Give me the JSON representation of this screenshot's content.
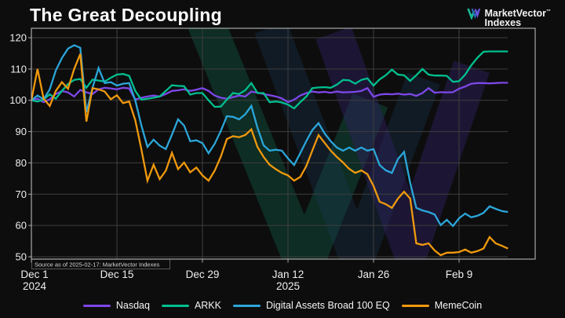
{
  "header": {
    "title": "The Great Decoupling",
    "logo": {
      "line1": "MarketVector",
      "trademark": "™",
      "line2": "Indexes"
    }
  },
  "source_note": "Source as of 2025-02-17: MarketVector Indexes",
  "chart_data": {
    "type": "line",
    "title": "The Great Decoupling",
    "normalized_base": 100,
    "grid": true,
    "legend_position": "bottom",
    "ylim": [
      48,
      122
    ],
    "y_ticks": [
      120,
      110,
      100,
      90,
      80,
      70,
      60,
      50
    ],
    "x_ticks": [
      {
        "label": "Dec 1",
        "sublabel": "2024",
        "day_index": 0
      },
      {
        "label": "Dec 15",
        "sublabel": "",
        "day_index": 14
      },
      {
        "label": "Dec 29",
        "sublabel": "",
        "day_index": 28
      },
      {
        "label": "Jan 12",
        "sublabel": "2025",
        "day_index": 42
      },
      {
        "label": "Jan 26",
        "sublabel": "",
        "day_index": 56
      },
      {
        "label": "Feb 9",
        "sublabel": "",
        "day_index": 70
      }
    ],
    "x": [
      "Dec 1",
      "Dec 2",
      "Dec 3",
      "Dec 4",
      "Dec 5",
      "Dec 6",
      "Dec 7",
      "Dec 8",
      "Dec 9",
      "Dec 10",
      "Dec 11",
      "Dec 12",
      "Dec 13",
      "Dec 14",
      "Dec 15",
      "Dec 16",
      "Dec 17",
      "Dec 18",
      "Dec 19",
      "Dec 20",
      "Dec 21",
      "Dec 22",
      "Dec 23",
      "Dec 24",
      "Dec 25",
      "Dec 26",
      "Dec 27",
      "Dec 28",
      "Dec 29",
      "Dec 30",
      "Dec 31",
      "Jan 1",
      "Jan 2",
      "Jan 3",
      "Jan 4",
      "Jan 5",
      "Jan 6",
      "Jan 7",
      "Jan 8",
      "Jan 9",
      "Jan 10",
      "Jan 11",
      "Jan 12",
      "Jan 13",
      "Jan 14",
      "Jan 15",
      "Jan 16",
      "Jan 17",
      "Jan 18",
      "Jan 19",
      "Jan 20",
      "Jan 21",
      "Jan 22",
      "Jan 23",
      "Jan 24",
      "Jan 25",
      "Jan 26",
      "Jan 27",
      "Jan 28",
      "Jan 29",
      "Jan 30",
      "Jan 31",
      "Feb 1",
      "Feb 2",
      "Feb 3",
      "Feb 4",
      "Feb 5",
      "Feb 6",
      "Feb 7",
      "Feb 8",
      "Feb 9",
      "Feb 10",
      "Feb 11",
      "Feb 12",
      "Feb 13",
      "Feb 14",
      "Feb 15",
      "Feb 16",
      "Feb 17"
    ],
    "series": [
      {
        "name": "Nasdaq",
        "color": "#7d47e8",
        "values": [
          100,
          100.5,
          99.4,
          100.3,
          102,
          103,
          102.5,
          101.2,
          103.3,
          102.5,
          102,
          103.5,
          104,
          103.8,
          103.5,
          104,
          103.8,
          100.2,
          100.8,
          101.2,
          101.5,
          101.2,
          102,
          103,
          103.2,
          103.5,
          103,
          103.4,
          103.9,
          103,
          101.5,
          100.8,
          100.5,
          101,
          101.5,
          101.2,
          102.8,
          102.4,
          102,
          101.6,
          101.2,
          100.6,
          99.4,
          100.2,
          101.5,
          102.3,
          102.8,
          102.5,
          102.7,
          102.4,
          102.8,
          102.5,
          102.6,
          102.7,
          103,
          103.9,
          101.1,
          101.8,
          102,
          101.9,
          102.1,
          101.8,
          102,
          101.4,
          102.3,
          103.9,
          102.4,
          102.6,
          102.5,
          102.6,
          103.7,
          104.4,
          105.3,
          105.5,
          105.5,
          105.4,
          105.5,
          105.6,
          105.6
        ]
      },
      {
        "name": "ARKK",
        "color": "#00bf8f",
        "values": [
          100,
          99.6,
          100.2,
          101.9,
          100.5,
          103,
          105.2,
          106.5,
          106.8,
          104,
          106.6,
          106.3,
          106,
          107.2,
          108.2,
          108.4,
          107.8,
          103,
          100.2,
          100.5,
          100.8,
          101.2,
          103,
          104.8,
          104.6,
          104.5,
          101.8,
          102.3,
          102.3,
          100,
          97.9,
          98,
          100.2,
          102.3,
          102,
          103.2,
          105.5,
          102.3,
          102.3,
          99.4,
          99.6,
          99.3,
          98.6,
          97.4,
          99.4,
          101.2,
          103.9,
          104.1,
          104.2,
          104,
          105,
          106.5,
          106.4,
          105.3,
          106.5,
          107,
          104.7,
          106.7,
          108,
          109.8,
          108.2,
          108,
          106.2,
          108,
          110,
          108.2,
          107.9,
          107.9,
          107.8,
          105.9,
          106.1,
          108.2,
          111.2,
          113.6,
          115.5,
          115.6,
          115.6,
          115.6,
          115.6
        ]
      },
      {
        "name": "Digital Assets Broad 100 EQ",
        "color": "#2ba6d9",
        "values": [
          100,
          101.5,
          100.3,
          103.5,
          109.5,
          113.5,
          116.5,
          117.6,
          116.8,
          96.2,
          104,
          110.3,
          105.5,
          105.8,
          104.7,
          105.3,
          105.5,
          100,
          92,
          85.1,
          87.4,
          85.5,
          84.4,
          89,
          93.9,
          91.9,
          86.9,
          87.2,
          86.3,
          83.1,
          86.1,
          90.2,
          94.9,
          94.7,
          93.9,
          95.5,
          98.2,
          91.2,
          85.6,
          83.9,
          84.2,
          83.9,
          81.4,
          79.3,
          83.1,
          87,
          90.5,
          92.7,
          89.4,
          86.9,
          84.9,
          83.9,
          84.9,
          83.9,
          84.9,
          83.9,
          84.4,
          79.3,
          77.6,
          76.8,
          81.2,
          83.5,
          73.6,
          65.6,
          64.8,
          64.3,
          63.5,
          60.1,
          61.8,
          59.8,
          62.3,
          63.8,
          62.6,
          63.1,
          64,
          66.1,
          65.3,
          64.6,
          64.3
        ]
      },
      {
        "name": "MemeCoin",
        "color": "#ef990d",
        "values": [
          100,
          110,
          100.5,
          98.2,
          103,
          105.8,
          103.7,
          110,
          114.8,
          93.2,
          103.9,
          103.5,
          102.8,
          100.3,
          101.6,
          99.1,
          99.6,
          93.6,
          84.4,
          74.3,
          79.4,
          74.8,
          77.5,
          83.2,
          78,
          80.1,
          77,
          78.5,
          76,
          74.3,
          77.5,
          82,
          87.6,
          88.5,
          88.2,
          88.9,
          90.7,
          85.1,
          81.9,
          79.4,
          78,
          76.8,
          76,
          74.3,
          75.5,
          79,
          84,
          88.9,
          86.4,
          83.9,
          81.9,
          80.1,
          78.1,
          76.8,
          77.6,
          76.4,
          72.6,
          67.6,
          66.8,
          65.6,
          68.6,
          70.8,
          68.6,
          54.3,
          53.8,
          54.3,
          52,
          50.5,
          51.3,
          51.3,
          51.5,
          52.3,
          51.3,
          51.8,
          52.6,
          56.3,
          54.3,
          53.5,
          52.6
        ]
      }
    ]
  }
}
